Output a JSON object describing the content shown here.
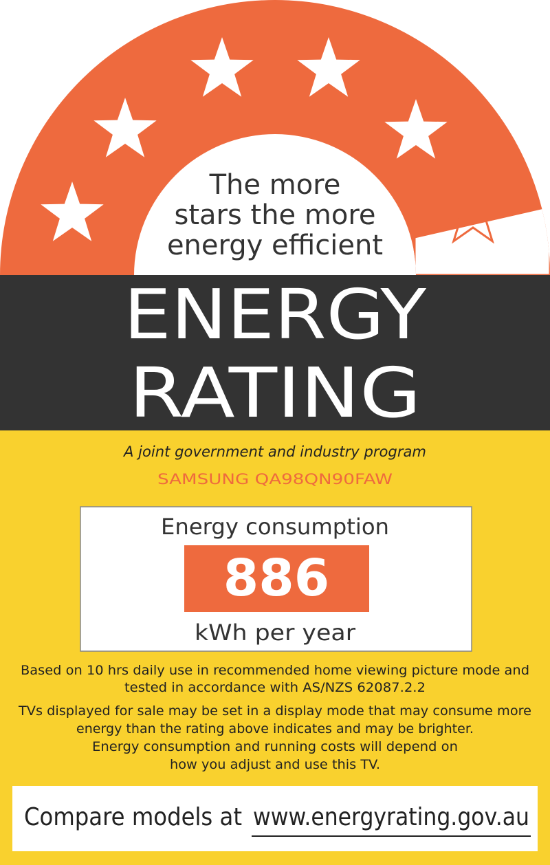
{
  "header": {
    "tagline": [
      "The more",
      "stars the more",
      "energy efficient"
    ],
    "title": [
      "ENERGY",
      "RATING"
    ]
  },
  "program": "A joint government and industry program",
  "model": "SAMSUNG QA98QN90FAW",
  "consumption": {
    "label": "Energy consumption",
    "value": 886,
    "unit": "kWh per year"
  },
  "notes": [
    [
      "Based on 10 hrs daily use in recommended home viewing picture mode and",
      "tested in accordance with AS/NZS 62087.2.2"
    ],
    [
      "TVs displayed for sale may be set in a display mode that may consume more",
      "energy than the rating above indicates and may be brighter.",
      "Energy consumption and running costs will depend on",
      "how you adjust and use this TV."
    ]
  ],
  "footer": {
    "text": "Compare models at",
    "link": "www.energyrating.gov.au"
  }
}
